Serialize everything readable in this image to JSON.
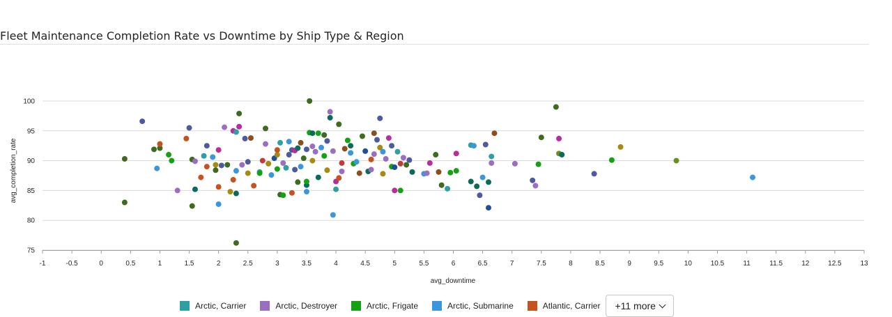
{
  "title": "Fleet Maintenance Completion Rate vs Downtime by Ship Type & Region",
  "legend": {
    "items": [
      {
        "label": "Arctic, Carrier",
        "color": "#2e9fa3"
      },
      {
        "label": "Arctic, Destroyer",
        "color": "#9a6fc2"
      },
      {
        "label": "Arctic, Frigate",
        "color": "#14a214"
      },
      {
        "label": "Arctic, Submarine",
        "color": "#3b96dd"
      },
      {
        "label": "Atlantic, Carrier",
        "color": "#c6531e"
      }
    ],
    "more_label": "+11 more"
  },
  "chart_data": {
    "type": "scatter",
    "title": "Fleet Maintenance Completion Rate vs Downtime by Ship Type & Region",
    "xlabel": "avg_downtime",
    "ylabel": "avg_completion_rate",
    "xlim": [
      -1,
      13
    ],
    "ylim": [
      75,
      100
    ],
    "x_ticks": [
      "-1",
      "-0.5",
      "0",
      "0.5",
      "1",
      "1.5",
      "2",
      "2.5",
      "3",
      "3.5",
      "4",
      "4.5",
      "5",
      "5.5",
      "6",
      "6.5",
      "7",
      "7.5",
      "8",
      "8.5",
      "9",
      "9.5",
      "10",
      "10.5",
      "11",
      "11.5",
      "12",
      "12.5",
      "13"
    ],
    "y_ticks": [
      "75",
      "80",
      "85",
      "90",
      "95",
      "100"
    ],
    "grid": true,
    "legend_position": "bottom",
    "palette": [
      "#2e9fa3",
      "#9a6fc2",
      "#14a214",
      "#3b96dd",
      "#c6531e",
      "#4e5a9f",
      "#3d6b1f",
      "#b82d9a",
      "#a68a12",
      "#0a6b5a",
      "#c03c3c",
      "#8a4f1c",
      "#1f4e9a",
      "#6b8e23",
      "#6a1f9a",
      "#b8860b"
    ],
    "points": [
      [
        0.4,
        90.3,
        6
      ],
      [
        0.4,
        83,
        6
      ],
      [
        0.7,
        96.6,
        5
      ],
      [
        0.9,
        91.9,
        6
      ],
      [
        0.95,
        88.7,
        3
      ],
      [
        1.0,
        92.1,
        6
      ],
      [
        1.0,
        92.8,
        4
      ],
      [
        1.15,
        91.0,
        2
      ],
      [
        1.2,
        90.0,
        2
      ],
      [
        1.3,
        85.0,
        1
      ],
      [
        1.45,
        93.7,
        4
      ],
      [
        1.5,
        95.5,
        5
      ],
      [
        1.55,
        90.2,
        6
      ],
      [
        1.55,
        82.4,
        6
      ],
      [
        1.6,
        85.2,
        9
      ],
      [
        1.6,
        89.9,
        1
      ],
      [
        1.7,
        87.2,
        4
      ],
      [
        1.75,
        90.8,
        0
      ],
      [
        1.8,
        92.5,
        5
      ],
      [
        1.8,
        89.0,
        4
      ],
      [
        1.9,
        90.6,
        3
      ],
      [
        1.95,
        89.3,
        8
      ],
      [
        1.95,
        88.4,
        6
      ],
      [
        2.0,
        91.8,
        7
      ],
      [
        2.0,
        82.7,
        3
      ],
      [
        2.0,
        85.6,
        4
      ],
      [
        2.05,
        89.2,
        5
      ],
      [
        2.1,
        95.6,
        1
      ],
      [
        2.15,
        89.3,
        6
      ],
      [
        2.2,
        84.8,
        8
      ],
      [
        2.25,
        86.8,
        4
      ],
      [
        2.25,
        95.0,
        7
      ],
      [
        2.3,
        76.2,
        6
      ],
      [
        2.3,
        88.3,
        3
      ],
      [
        2.3,
        94.8,
        0
      ],
      [
        2.3,
        84.5,
        9
      ],
      [
        2.35,
        97.9,
        6
      ],
      [
        2.35,
        95.7,
        7
      ],
      [
        2.4,
        89.3,
        1
      ],
      [
        2.45,
        93.7,
        5
      ],
      [
        2.5,
        87.9,
        8
      ],
      [
        2.5,
        89.8,
        5
      ],
      [
        2.55,
        93.8,
        11
      ],
      [
        2.6,
        85.8,
        4
      ],
      [
        2.7,
        88.1,
        0
      ],
      [
        2.7,
        87.9,
        2
      ],
      [
        2.75,
        90.0,
        10
      ],
      [
        2.8,
        95.4,
        6
      ],
      [
        2.8,
        92.8,
        1
      ],
      [
        2.85,
        89.5,
        8
      ],
      [
        2.9,
        87.6,
        3
      ],
      [
        2.95,
        90.4,
        12
      ],
      [
        3.0,
        91.0,
        8
      ],
      [
        3.0,
        88.6,
        2
      ],
      [
        3.0,
        91.8,
        4
      ],
      [
        3.05,
        93.0,
        0
      ],
      [
        3.05,
        84.3,
        6
      ],
      [
        3.1,
        84.2,
        2
      ],
      [
        3.1,
        89.6,
        1
      ],
      [
        3.15,
        88.8,
        0
      ],
      [
        3.2,
        91.0,
        5
      ],
      [
        3.2,
        93.2,
        3
      ],
      [
        3.25,
        91.8,
        5
      ],
      [
        3.25,
        84.6,
        4
      ],
      [
        3.3,
        88.5,
        5
      ],
      [
        3.3,
        91.7,
        7
      ],
      [
        3.35,
        92.1,
        9
      ],
      [
        3.35,
        86.4,
        6
      ],
      [
        3.4,
        93.0,
        11
      ],
      [
        3.4,
        89.0,
        3
      ],
      [
        3.45,
        90.4,
        6
      ],
      [
        3.5,
        91.9,
        5
      ],
      [
        3.5,
        84.8,
        3
      ],
      [
        3.5,
        85.9,
        9
      ],
      [
        3.5,
        86.5,
        2
      ],
      [
        3.55,
        94.7,
        2
      ],
      [
        3.55,
        100.0,
        6
      ],
      [
        3.6,
        94.6,
        9
      ],
      [
        3.6,
        90.0,
        8
      ],
      [
        3.6,
        92.4,
        1
      ],
      [
        3.65,
        91.5,
        1
      ],
      [
        3.7,
        87.2,
        9
      ],
      [
        3.7,
        94.6,
        2
      ],
      [
        3.75,
        92.2,
        3
      ],
      [
        3.8,
        90.8,
        2
      ],
      [
        3.8,
        94.3,
        6
      ],
      [
        3.85,
        93.3,
        5
      ],
      [
        3.85,
        88.4,
        8
      ],
      [
        3.9,
        97.2,
        9
      ],
      [
        3.9,
        98.2,
        1
      ],
      [
        3.95,
        80.9,
        3
      ],
      [
        3.95,
        91.6,
        1
      ],
      [
        4.0,
        86.5,
        7
      ],
      [
        4.0,
        85.2,
        0
      ],
      [
        4.05,
        87.1,
        4
      ],
      [
        4.05,
        96.1,
        6
      ],
      [
        4.1,
        89.6,
        10
      ],
      [
        4.1,
        88.2,
        1
      ],
      [
        4.15,
        92.0,
        11
      ],
      [
        4.2,
        93.4,
        2
      ],
      [
        4.25,
        91.3,
        3
      ],
      [
        4.25,
        92.5,
        9
      ],
      [
        4.3,
        89.5,
        2
      ],
      [
        4.35,
        89.8,
        3
      ],
      [
        4.4,
        87.9,
        11
      ],
      [
        4.45,
        94.1,
        6
      ],
      [
        4.5,
        91.6,
        12
      ],
      [
        4.55,
        88.2,
        9
      ],
      [
        4.6,
        90.2,
        4
      ],
      [
        4.6,
        88.5,
        1
      ],
      [
        4.65,
        94.6,
        11
      ],
      [
        4.65,
        91.1,
        1
      ],
      [
        4.7,
        93.5,
        5
      ],
      [
        4.75,
        97.1,
        5
      ],
      [
        4.75,
        92.2,
        8
      ],
      [
        4.8,
        91.5,
        3
      ],
      [
        4.8,
        87.8,
        8
      ],
      [
        4.85,
        90.3,
        1
      ],
      [
        4.9,
        93.8,
        7
      ],
      [
        4.95,
        89.0,
        2
      ],
      [
        4.95,
        92.5,
        5
      ],
      [
        5.0,
        88.9,
        12
      ],
      [
        5.0,
        85.0,
        7
      ],
      [
        5.05,
        91.5,
        0
      ],
      [
        5.1,
        85.0,
        2
      ],
      [
        5.1,
        89.5,
        10
      ],
      [
        5.15,
        90.5,
        1
      ],
      [
        5.2,
        89.3,
        6
      ],
      [
        5.25,
        90.1,
        5
      ],
      [
        5.3,
        88.1,
        9
      ],
      [
        5.5,
        87.8,
        3
      ],
      [
        5.55,
        87.9,
        1
      ],
      [
        5.6,
        89.6,
        7
      ],
      [
        5.7,
        91.0,
        6
      ],
      [
        5.75,
        88.1,
        11
      ],
      [
        5.8,
        85.9,
        6
      ],
      [
        5.9,
        85.3,
        0
      ],
      [
        5.95,
        88.0,
        2
      ],
      [
        6.05,
        88.3,
        2
      ],
      [
        6.05,
        91.2,
        7
      ],
      [
        6.3,
        92.6,
        0
      ],
      [
        6.3,
        86.5,
        9
      ],
      [
        6.35,
        92.5,
        3
      ],
      [
        6.4,
        85.7,
        9
      ],
      [
        6.45,
        84.2,
        5
      ],
      [
        6.5,
        87.2,
        3
      ],
      [
        6.55,
        92.7,
        5
      ],
      [
        6.6,
        86.4,
        9
      ],
      [
        6.6,
        82.1,
        12
      ],
      [
        6.65,
        90.7,
        0
      ],
      [
        6.65,
        89.6,
        1
      ],
      [
        6.7,
        94.6,
        11
      ],
      [
        7.05,
        89.5,
        1
      ],
      [
        7.35,
        86.7,
        5
      ],
      [
        7.4,
        85.8,
        1
      ],
      [
        7.45,
        89.4,
        2
      ],
      [
        7.5,
        93.9,
        6
      ],
      [
        7.75,
        99.0,
        6
      ],
      [
        7.8,
        91.2,
        13
      ],
      [
        7.8,
        93.7,
        7
      ],
      [
        7.85,
        91.0,
        9
      ],
      [
        8.4,
        87.8,
        5
      ],
      [
        8.7,
        90.1,
        2
      ],
      [
        8.85,
        92.3,
        8
      ],
      [
        9.8,
        90.0,
        13
      ],
      [
        11.1,
        87.2,
        3
      ]
    ]
  }
}
